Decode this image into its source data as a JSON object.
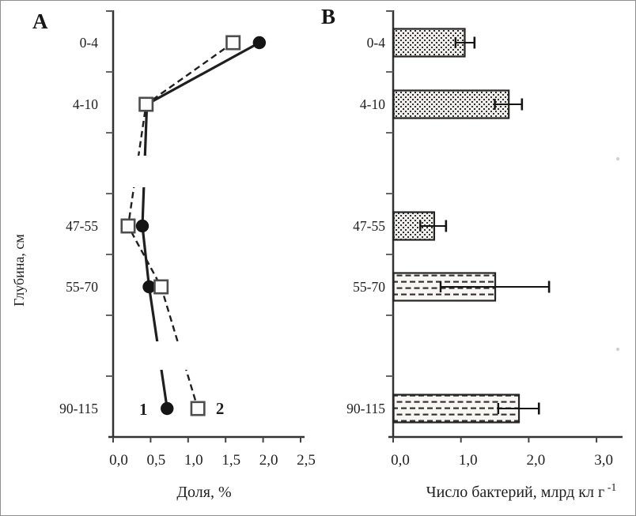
{
  "figure": {
    "background": "#ffffff",
    "ink_color": "#1f1f1f",
    "border_color": "#8f8f8f"
  },
  "chart_data": [
    {
      "type": "line",
      "panel_label": "A",
      "orientation": "value-on-x, depth-categories-on-y",
      "categories": [
        "0-4",
        "4-10",
        "47-55",
        "55-70",
        "90-115"
      ],
      "xlabel": "Доля, %",
      "ylabel": "Глубина, см",
      "xlim": [
        0,
        2.5
      ],
      "xtick_values": [
        0,
        0.5,
        1.0,
        1.5,
        2.0,
        2.5
      ],
      "xtick_labels": [
        "0,0",
        "0,5",
        "1,0",
        "1,5",
        "2,0",
        "2,5"
      ],
      "grid": false,
      "legend": "numeric series labels drawn next to lowest data points",
      "axis_breaks": "line gaps between 4-10 / 47-55 and between 55-70 / 90-115",
      "series": [
        {
          "name": "1",
          "marker": "filled-circle",
          "line_style": "solid",
          "values": [
            1.95,
            0.45,
            0.39,
            0.48,
            0.72
          ]
        },
        {
          "name": "2",
          "marker": "open-square",
          "line_style": "dashed",
          "values": [
            1.6,
            0.44,
            0.2,
            0.64,
            1.13
          ]
        }
      ]
    },
    {
      "type": "bar",
      "panel_label": "B",
      "orientation": "horizontal bars",
      "categories": [
        "0-4",
        "4-10",
        "47-55",
        "55-70",
        "90-115"
      ],
      "xlabel": "Число бактерий, млрд кл г",
      "xlabel_superscript": "-1",
      "ylabel": "",
      "xlim": [
        0,
        3.4
      ],
      "xtick_values": [
        0,
        1.0,
        2.0,
        3.0
      ],
      "xtick_labels": [
        "0,0",
        "1,0",
        "2,0",
        "3,0"
      ],
      "grid": false,
      "values": [
        1.05,
        1.7,
        0.6,
        1.5,
        1.85
      ],
      "error_low": [
        0.92,
        1.5,
        0.4,
        0.7,
        1.55
      ],
      "error_high": [
        1.2,
        1.9,
        0.78,
        2.3,
        2.15
      ],
      "bar_fill_patterns": [
        "dots",
        "dots",
        "dots",
        "dashes",
        "dashes"
      ]
    }
  ]
}
